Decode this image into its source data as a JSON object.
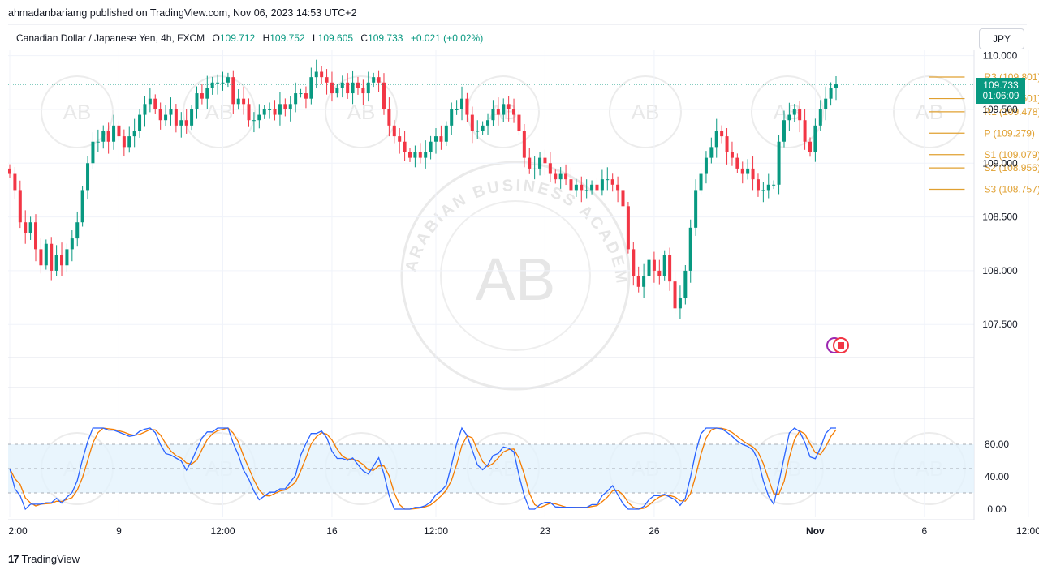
{
  "publisher_line": "ahmadanbariamg published on TradingView.com, Nov 06, 2023 14:53 UTC+2",
  "symbol": {
    "name": "Canadian Dollar / Japanese Yen, 4h, FXCM",
    "open_label": "O",
    "open": "109.712",
    "high_label": "H",
    "high": "109.752",
    "low_label": "L",
    "low": "109.605",
    "close_label": "C",
    "close": "109.733",
    "change": "+0.021 (+0.02%)"
  },
  "currency_button": "JPY",
  "last_price": {
    "price": "109.733",
    "countdown": "01:06:09"
  },
  "footer_brand": "TradingView",
  "watermark": {
    "arc_text": "ARABIAN BUSINESS ACADEMY",
    "monogram": "AB"
  },
  "colors": {
    "up": "#089981",
    "down": "#f23645",
    "pivot": "#e0a030",
    "stoch_k": "#2962ff",
    "stoch_d": "#f57c00",
    "band": "#e3f2fd"
  },
  "chart_data": [
    {
      "type": "candlestick",
      "ylim": [
        107.2,
        110.05
      ],
      "y_ticks": [
        "110.000",
        "109.500",
        "109.000",
        "108.500",
        "108.000",
        "107.500"
      ],
      "y_tick_values": [
        110.0,
        109.5,
        109.0,
        108.5,
        108.0,
        107.5
      ],
      "x_tick_labels": [
        "2:00",
        "9",
        "12:00",
        "16",
        "12:00",
        "23",
        "26",
        "Nov",
        "6",
        "12:00"
      ],
      "x_tick_index": [
        0,
        21,
        41,
        62,
        82,
        103,
        124,
        155,
        176,
        196
      ],
      "pivots": [
        {
          "name": "R3",
          "label": "R3 (109.801)",
          "value": 109.801
        },
        {
          "name": "R2",
          "label": "R2 (109.601)",
          "value": 109.601
        },
        {
          "name": "R1",
          "label": "R1 (109.478)",
          "value": 109.478
        },
        {
          "name": "P",
          "label": "P (109.279)",
          "value": 109.279
        },
        {
          "name": "S1",
          "label": "S1 (109.079)",
          "value": 109.079
        },
        {
          "name": "S2",
          "label": "S2 (108.956)",
          "value": 108.956
        },
        {
          "name": "S3",
          "label": "S3 (108.757)",
          "value": 108.757
        }
      ],
      "pivot_start_index": 180,
      "close_series": [
        108.9,
        108.75,
        108.45,
        108.35,
        108.45,
        108.2,
        108.05,
        108.25,
        108.0,
        108.15,
        108.05,
        108.2,
        108.3,
        108.45,
        108.75,
        109.0,
        109.2,
        109.2,
        109.3,
        109.2,
        109.35,
        109.25,
        109.15,
        109.25,
        109.3,
        109.45,
        109.55,
        109.6,
        109.5,
        109.4,
        109.45,
        109.5,
        109.35,
        109.4,
        109.35,
        109.5,
        109.65,
        109.6,
        109.7,
        109.75,
        109.75,
        109.75,
        109.8,
        109.55,
        109.6,
        109.55,
        109.4,
        109.4,
        109.45,
        109.5,
        109.5,
        109.45,
        109.55,
        109.5,
        109.55,
        109.65,
        109.65,
        109.6,
        109.8,
        109.85,
        109.8,
        109.75,
        109.65,
        109.7,
        109.75,
        109.65,
        109.75,
        109.7,
        109.65,
        109.75,
        109.8,
        109.75,
        109.5,
        109.35,
        109.25,
        109.2,
        109.1,
        109.05,
        109.1,
        109.05,
        109.1,
        109.2,
        109.25,
        109.2,
        109.35,
        109.5,
        109.5,
        109.6,
        109.45,
        109.3,
        109.3,
        109.35,
        109.4,
        109.5,
        109.45,
        109.55,
        109.5,
        109.45,
        109.3,
        109.05,
        108.95,
        108.95,
        109.05,
        109.0,
        108.9,
        108.85,
        108.9,
        108.85,
        108.75,
        108.8,
        108.75,
        108.75,
        108.8,
        108.75,
        108.85,
        108.85,
        108.8,
        108.75,
        108.6,
        108.2,
        107.95,
        107.85,
        107.95,
        108.1,
        108.0,
        107.95,
        108.15,
        107.9,
        107.65,
        107.75,
        108.0,
        108.4,
        108.75,
        108.9,
        109.05,
        109.15,
        109.3,
        109.25,
        109.1,
        109.05,
        108.95,
        108.9,
        108.95,
        108.85,
        108.75,
        108.75,
        108.8,
        108.8,
        109.2,
        109.4,
        109.45,
        109.5,
        109.4,
        109.2,
        109.1,
        109.35,
        109.5,
        109.6,
        109.7,
        109.733
      ],
      "stochastic": {
        "levels": [
          "80.00",
          "40.00",
          "0.00"
        ],
        "level_values": [
          80,
          40,
          0
        ],
        "band": [
          20,
          80
        ],
        "mid": 50
      }
    }
  ]
}
